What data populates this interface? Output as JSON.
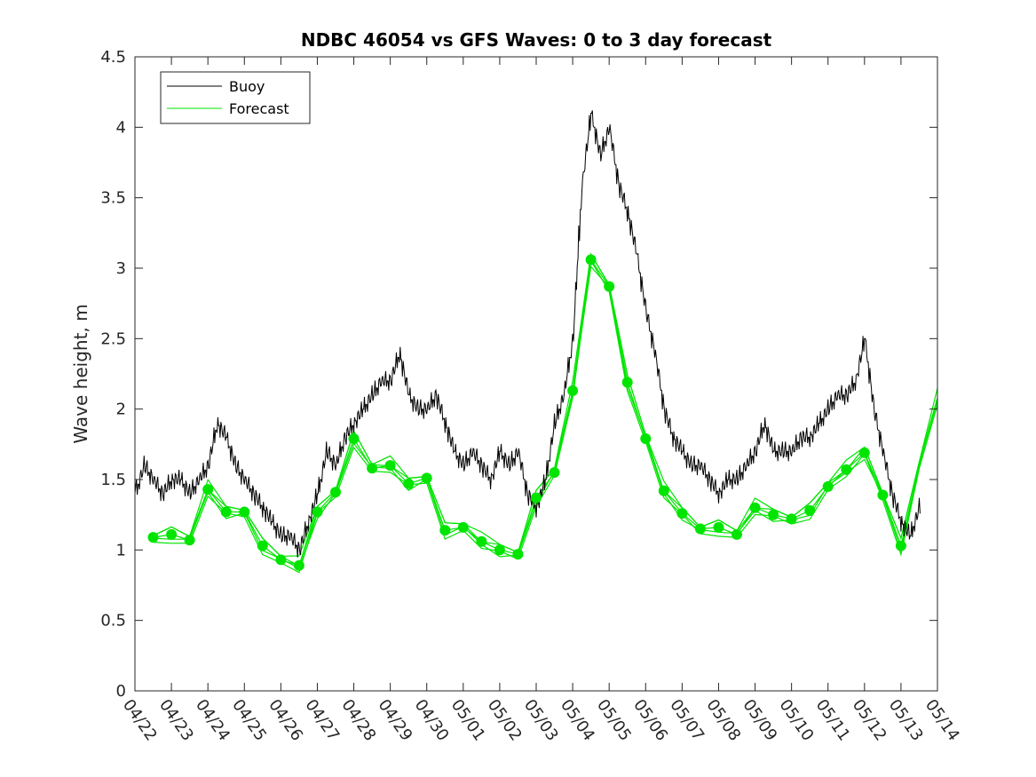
{
  "chart_data": {
    "type": "line",
    "title": "NDBC 46054 vs GFS Waves: 0 to 3 day forecast",
    "xlabel": "",
    "ylabel": "Wave height, m",
    "x_range": [
      "04/22",
      "05/14"
    ],
    "ylim": [
      0,
      4.5
    ],
    "yticks": [
      0,
      0.5,
      1,
      1.5,
      2,
      2.5,
      3,
      3.5,
      4,
      4.5
    ],
    "xticks": [
      "04/22",
      "04/23",
      "04/24",
      "04/25",
      "04/26",
      "04/27",
      "04/28",
      "04/29",
      "04/30",
      "05/01",
      "05/02",
      "05/03",
      "05/04",
      "05/05",
      "05/06",
      "05/07",
      "05/08",
      "05/09",
      "05/10",
      "05/11",
      "05/12",
      "05/13",
      "05/14"
    ],
    "grid": false,
    "legend_position": "top-left",
    "colors": {
      "buoy": "#000000",
      "forecast": "#00e400",
      "axis": "#262626"
    },
    "series": [
      {
        "name": "Buoy",
        "x": [
          "04/22 00:00",
          "04/22 06:00",
          "04/22 12:00",
          "04/22 18:00",
          "04/23 00:00",
          "04/23 06:00",
          "04/23 12:00",
          "04/23 18:00",
          "04/24 00:00",
          "04/24 06:00",
          "04/24 12:00",
          "04/24 18:00",
          "04/25 00:00",
          "04/25 06:00",
          "04/25 12:00",
          "04/25 18:00",
          "04/26 00:00",
          "04/26 06:00",
          "04/26 12:00",
          "04/26 18:00",
          "04/27 00:00",
          "04/27 06:00",
          "04/27 12:00",
          "04/27 18:00",
          "04/28 00:00",
          "04/28 06:00",
          "04/28 12:00",
          "04/28 18:00",
          "04/29 00:00",
          "04/29 06:00",
          "04/29 12:00",
          "04/29 18:00",
          "04/30 00:00",
          "04/30 06:00",
          "04/30 12:00",
          "04/30 18:00",
          "05/01 00:00",
          "05/01 06:00",
          "05/01 12:00",
          "05/01 18:00",
          "05/02 00:00",
          "05/02 06:00",
          "05/02 12:00",
          "05/02 18:00",
          "05/03 00:00",
          "05/03 06:00",
          "05/03 12:00",
          "05/03 18:00",
          "05/04 00:00",
          "05/04 06:00",
          "05/04 12:00",
          "05/04 18:00",
          "05/05 00:00",
          "05/05 06:00",
          "05/05 12:00",
          "05/05 18:00",
          "05/06 00:00",
          "05/06 06:00",
          "05/06 12:00",
          "05/06 18:00",
          "05/07 00:00",
          "05/07 06:00",
          "05/07 12:00",
          "05/07 18:00",
          "05/08 00:00",
          "05/08 06:00",
          "05/08 12:00",
          "05/08 18:00",
          "05/09 00:00",
          "05/09 06:00",
          "05/09 12:00",
          "05/09 18:00",
          "05/10 00:00",
          "05/10 06:00",
          "05/10 12:00",
          "05/10 18:00",
          "05/11 00:00",
          "05/11 06:00",
          "05/11 12:00",
          "05/11 18:00",
          "05/12 00:00",
          "05/12 06:00",
          "05/12 12:00",
          "05/12 18:00",
          "05/13 00:00",
          "05/13 06:00",
          "05/13 12:00"
        ],
        "values": [
          1.4,
          1.6,
          1.5,
          1.4,
          1.5,
          1.5,
          1.4,
          1.5,
          1.6,
          1.9,
          1.8,
          1.6,
          1.5,
          1.4,
          1.3,
          1.2,
          1.1,
          1.1,
          1.0,
          1.2,
          1.4,
          1.7,
          1.6,
          1.8,
          1.9,
          2.0,
          2.1,
          2.2,
          2.2,
          2.4,
          2.1,
          2.0,
          2.0,
          2.1,
          1.9,
          1.7,
          1.6,
          1.7,
          1.6,
          1.5,
          1.7,
          1.6,
          1.7,
          1.4,
          1.3,
          1.5,
          1.9,
          2.1,
          2.5,
          3.6,
          4.1,
          3.8,
          4.0,
          3.6,
          3.4,
          3.1,
          2.7,
          2.4,
          2.0,
          1.8,
          1.7,
          1.6,
          1.6,
          1.5,
          1.4,
          1.5,
          1.5,
          1.6,
          1.7,
          1.9,
          1.7,
          1.7,
          1.7,
          1.8,
          1.8,
          1.9,
          2.0,
          2.1,
          2.1,
          2.2,
          2.5,
          2.0,
          1.7,
          1.4,
          1.2,
          1.1,
          1.3
        ]
      },
      {
        "name": "Forecast",
        "x": [
          "04/22 12:00",
          "04/23 00:00",
          "04/23 12:00",
          "04/24 00:00",
          "04/24 12:00",
          "04/25 00:00",
          "04/25 12:00",
          "04/26 00:00",
          "04/26 12:00",
          "04/27 00:00",
          "04/27 12:00",
          "04/28 00:00",
          "04/28 12:00",
          "04/29 00:00",
          "04/29 12:00",
          "04/30 00:00",
          "04/30 12:00",
          "05/01 00:00",
          "05/01 12:00",
          "05/02 00:00",
          "05/02 12:00",
          "05/03 00:00",
          "05/03 12:00",
          "05/04 00:00",
          "05/04 12:00",
          "05/05 00:00",
          "05/05 12:00",
          "05/06 00:00",
          "05/06 12:00",
          "05/07 00:00",
          "05/07 12:00",
          "05/08 00:00",
          "05/08 12:00",
          "05/09 00:00",
          "05/09 12:00",
          "05/10 00:00",
          "05/10 12:00",
          "05/11 00:00",
          "05/11 12:00",
          "05/12 00:00",
          "05/12 12:00",
          "05/13 00:00",
          "05/13 12:00",
          "05/14 00:00"
        ],
        "values": [
          1.09,
          1.11,
          1.07,
          1.43,
          1.27,
          1.27,
          1.03,
          0.93,
          0.89,
          1.27,
          1.41,
          1.79,
          1.58,
          1.6,
          1.47,
          1.51,
          1.14,
          1.16,
          1.06,
          1.0,
          0.97,
          1.37,
          1.55,
          2.13,
          3.06,
          2.87,
          2.19,
          1.79,
          1.42,
          1.26,
          1.15,
          1.16,
          1.11,
          1.3,
          1.25,
          1.22,
          1.28,
          1.45,
          1.57,
          1.69,
          1.39,
          1.03,
          1.6,
          2.08
        ]
      }
    ]
  }
}
